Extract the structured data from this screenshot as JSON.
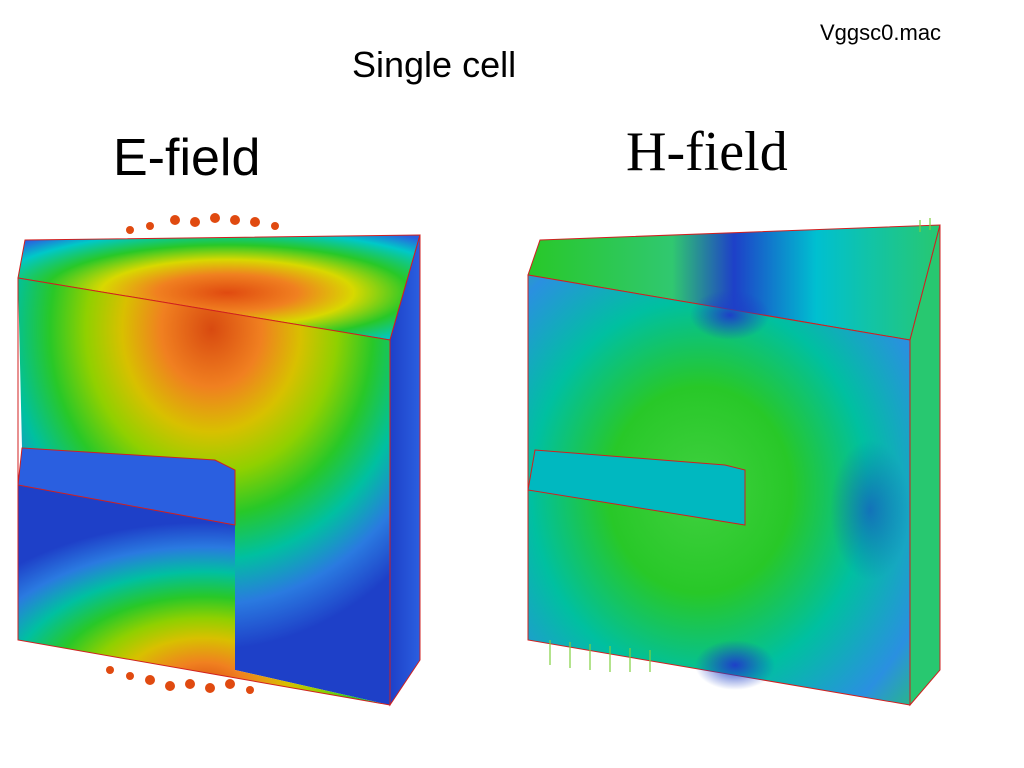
{
  "slide": {
    "file_name": "Vggsc0.mac",
    "title": "Single cell"
  },
  "panels": {
    "e_field": {
      "title": "E-field"
    },
    "h_field": {
      "title": "H-field"
    }
  },
  "colors": {
    "deep_blue": "#1e40c8",
    "blue": "#2a5fe0",
    "cyan": "#00c8c8",
    "green": "#28c828",
    "yellow": "#d8d800",
    "orange": "#f08020",
    "red_orange": "#e04a10",
    "edge_red": "#d02020"
  }
}
